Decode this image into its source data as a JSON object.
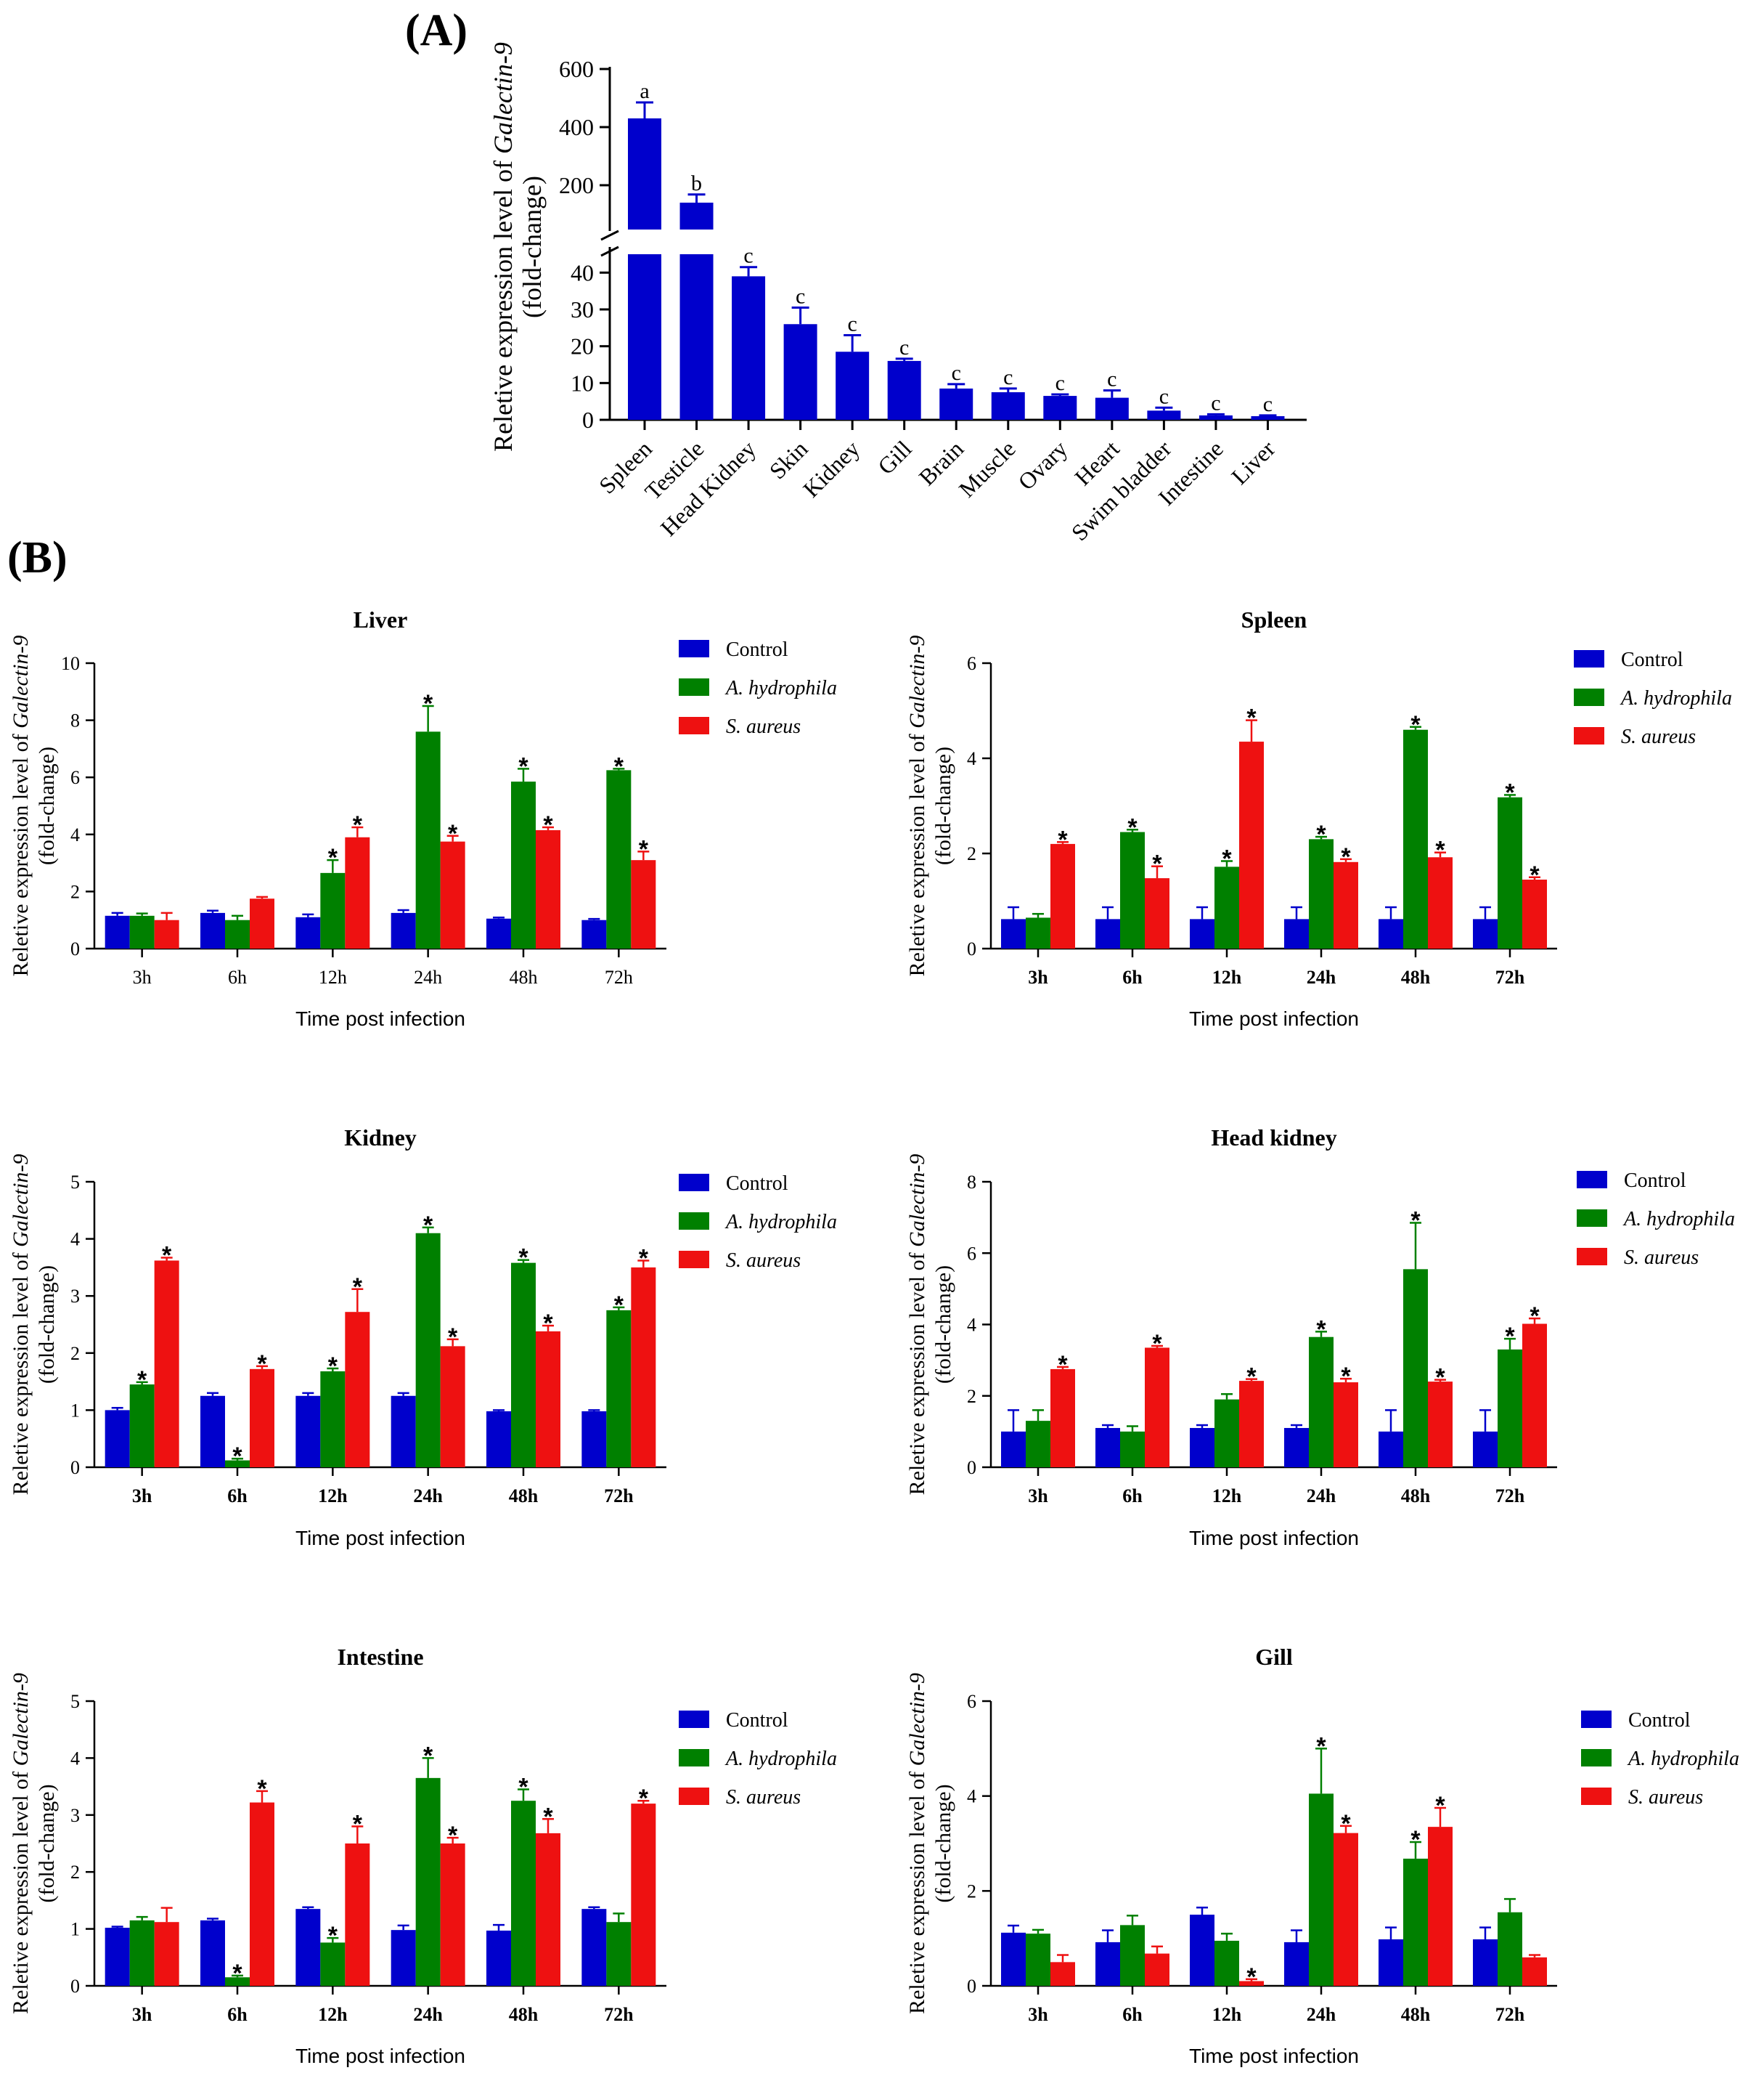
{
  "colors": {
    "control": "#0000cc",
    "hydrophila": "#008000",
    "aureus": "#ee1111",
    "tissue": "#0000cc"
  },
  "panels": {
    "a": "(A)",
    "b": "(B)"
  },
  "common": {
    "ylabel_prefix": "Reletive expression level of ",
    "ylabel_gene": "Galectin-9",
    "ylabel_suffix": "(fold-change)",
    "xlabel": "Time post infection",
    "legend": [
      "Control",
      "A. hydrophila",
      "S. aureus"
    ]
  },
  "chart_data": [
    {
      "id": "A",
      "type": "bar",
      "title": "",
      "ylabel": "Reletive expression level of Galectin-9 (fold-change)",
      "categories": [
        "Spleen",
        "Testicle",
        "Head Kidney",
        "Skin",
        "Kidney",
        "Gill",
        "Brain",
        "Muscle",
        "Ovary",
        "Heart",
        "Swim bladder",
        "Intestine",
        "Liver"
      ],
      "values": [
        430,
        140,
        39,
        26,
        18.5,
        16,
        8.5,
        7.5,
        6.5,
        6,
        2.5,
        1.2,
        1
      ],
      "errors": [
        55,
        28,
        2.5,
        4.5,
        4.5,
        0.6,
        1.2,
        1,
        0.4,
        2,
        0.8,
        0.3,
        0.2
      ],
      "letters": [
        "a",
        "b",
        "c",
        "c",
        "c",
        "c",
        "c",
        "c",
        "c",
        "c",
        "c",
        "c",
        "c"
      ],
      "broken_axis": {
        "lower": [
          0,
          45
        ],
        "upper": [
          0,
          600
        ]
      },
      "ticks_lower": [
        0,
        10,
        20,
        30,
        40
      ],
      "ticks_upper": [
        200,
        400,
        600
      ]
    },
    {
      "id": "liver",
      "type": "bar",
      "title": "Liver",
      "ylim": [
        0,
        10
      ],
      "yticks": [
        0,
        2,
        4,
        6,
        8,
        10
      ],
      "categories": [
        "3h",
        "6h",
        "12h",
        "24h",
        "48h",
        "72h"
      ],
      "bold_categories": false,
      "series": [
        {
          "name": "Control",
          "values": [
            1.15,
            1.25,
            1.1,
            1.25,
            1.05,
            1.0
          ],
          "errors": [
            0.1,
            0.08,
            0.1,
            0.1,
            0.04,
            0.04
          ],
          "sig": [
            false,
            false,
            false,
            false,
            false,
            false
          ]
        },
        {
          "name": "A. hydrophila",
          "values": [
            1.15,
            1.0,
            2.65,
            7.6,
            5.85,
            6.25
          ],
          "errors": [
            0.08,
            0.15,
            0.45,
            0.9,
            0.45,
            0.05
          ],
          "sig": [
            false,
            false,
            true,
            true,
            true,
            true
          ]
        },
        {
          "name": "S. aureus",
          "values": [
            1.0,
            1.75,
            3.9,
            3.75,
            4.15,
            3.1
          ],
          "errors": [
            0.25,
            0.06,
            0.35,
            0.2,
            0.1,
            0.3
          ],
          "sig": [
            false,
            false,
            true,
            true,
            true,
            true
          ]
        }
      ]
    },
    {
      "id": "spleen",
      "type": "bar",
      "title": "Spleen",
      "ylim": [
        0,
        6
      ],
      "yticks": [
        0,
        2,
        4,
        6
      ],
      "categories": [
        "3h",
        "6h",
        "12h",
        "24h",
        "48h",
        "72h"
      ],
      "bold_categories": true,
      "series": [
        {
          "name": "Control",
          "values": [
            0.62,
            0.62,
            0.62,
            0.62,
            0.62,
            0.62
          ],
          "errors": [
            0.25,
            0.25,
            0.25,
            0.25,
            0.25,
            0.25
          ],
          "sig": [
            false,
            false,
            false,
            false,
            false,
            false
          ]
        },
        {
          "name": "A. hydrophila",
          "values": [
            0.65,
            2.45,
            1.72,
            2.3,
            4.6,
            3.18
          ],
          "errors": [
            0.08,
            0.05,
            0.12,
            0.05,
            0.06,
            0.05
          ],
          "sig": [
            false,
            true,
            true,
            true,
            true,
            true
          ]
        },
        {
          "name": "S. aureus",
          "values": [
            2.2,
            1.48,
            4.35,
            1.82,
            1.92,
            1.45
          ],
          "errors": [
            0.04,
            0.25,
            0.45,
            0.06,
            0.1,
            0.05
          ],
          "sig": [
            true,
            true,
            true,
            true,
            true,
            true
          ]
        }
      ]
    },
    {
      "id": "kidney",
      "type": "bar",
      "title": "Kidney",
      "ylim": [
        0,
        5
      ],
      "yticks": [
        0,
        1,
        2,
        3,
        4,
        5
      ],
      "categories": [
        "3h",
        "6h",
        "12h",
        "24h",
        "48h",
        "72h"
      ],
      "bold_categories": true,
      "series": [
        {
          "name": "Control",
          "values": [
            1.0,
            1.25,
            1.25,
            1.25,
            0.98,
            0.98
          ],
          "errors": [
            0.04,
            0.05,
            0.05,
            0.05,
            0.02,
            0.02
          ],
          "sig": [
            false,
            false,
            false,
            false,
            false,
            false
          ]
        },
        {
          "name": "A. hydrophila",
          "values": [
            1.45,
            0.12,
            1.68,
            4.1,
            3.58,
            2.75
          ],
          "errors": [
            0.04,
            0.03,
            0.05,
            0.1,
            0.05,
            0.05
          ],
          "sig": [
            true,
            true,
            true,
            true,
            true,
            true
          ]
        },
        {
          "name": "S. aureus",
          "values": [
            3.62,
            1.72,
            2.72,
            2.12,
            2.38,
            3.5
          ],
          "errors": [
            0.05,
            0.05,
            0.4,
            0.12,
            0.1,
            0.12
          ],
          "sig": [
            true,
            true,
            true,
            true,
            true,
            true
          ]
        }
      ]
    },
    {
      "id": "head_kidney",
      "type": "bar",
      "title": "Head kidney",
      "ylim": [
        0,
        8
      ],
      "yticks": [
        0,
        2,
        4,
        6,
        8
      ],
      "categories": [
        "3h",
        "6h",
        "12h",
        "24h",
        "48h",
        "72h"
      ],
      "bold_categories": true,
      "series": [
        {
          "name": "Control",
          "values": [
            1.0,
            1.1,
            1.1,
            1.1,
            1.0,
            1.0
          ],
          "errors": [
            0.6,
            0.08,
            0.08,
            0.08,
            0.6,
            0.6
          ],
          "sig": [
            false,
            false,
            false,
            false,
            false,
            false
          ]
        },
        {
          "name": "A. hydrophila",
          "values": [
            1.3,
            1.0,
            1.9,
            3.65,
            5.55,
            3.3
          ],
          "errors": [
            0.3,
            0.15,
            0.15,
            0.15,
            1.3,
            0.3
          ],
          "sig": [
            false,
            false,
            false,
            true,
            true,
            true
          ]
        },
        {
          "name": "S. aureus",
          "values": [
            2.75,
            3.35,
            2.42,
            2.38,
            2.4,
            4.02
          ],
          "errors": [
            0.06,
            0.05,
            0.05,
            0.1,
            0.05,
            0.15
          ],
          "sig": [
            true,
            true,
            true,
            true,
            true,
            true
          ]
        }
      ]
    },
    {
      "id": "intestine",
      "type": "bar",
      "title": "Intestine",
      "ylim": [
        0,
        5
      ],
      "yticks": [
        0,
        1,
        2,
        3,
        4,
        5
      ],
      "categories": [
        "3h",
        "6h",
        "12h",
        "24h",
        "48h",
        "72h"
      ],
      "bold_categories": true,
      "series": [
        {
          "name": "Control",
          "values": [
            1.02,
            1.15,
            1.35,
            0.98,
            0.97,
            1.35
          ],
          "errors": [
            0.02,
            0.03,
            0.03,
            0.08,
            0.1,
            0.03
          ],
          "sig": [
            false,
            false,
            false,
            false,
            false,
            false
          ]
        },
        {
          "name": "A. hydrophila",
          "values": [
            1.15,
            0.15,
            0.76,
            3.65,
            3.25,
            1.12
          ],
          "errors": [
            0.06,
            0.03,
            0.08,
            0.35,
            0.2,
            0.15
          ],
          "sig": [
            false,
            true,
            true,
            true,
            true,
            false
          ]
        },
        {
          "name": "S. aureus",
          "values": [
            1.12,
            3.22,
            2.5,
            2.5,
            2.68,
            3.2
          ],
          "errors": [
            0.25,
            0.2,
            0.3,
            0.1,
            0.25,
            0.05
          ],
          "sig": [
            false,
            true,
            true,
            true,
            true,
            true
          ]
        }
      ]
    },
    {
      "id": "gill",
      "type": "bar",
      "title": "Gill",
      "ylim": [
        0,
        6
      ],
      "yticks": [
        0,
        2,
        4,
        6
      ],
      "categories": [
        "3h",
        "6h",
        "12h",
        "24h",
        "48h",
        "72h"
      ],
      "bold_categories": true,
      "series": [
        {
          "name": "Control",
          "values": [
            1.12,
            0.92,
            1.5,
            0.92,
            0.98,
            0.98
          ],
          "errors": [
            0.15,
            0.25,
            0.15,
            0.25,
            0.25,
            0.25
          ],
          "sig": [
            false,
            false,
            false,
            false,
            false,
            false
          ]
        },
        {
          "name": "A. hydrophila",
          "values": [
            1.1,
            1.28,
            0.95,
            4.05,
            2.68,
            1.55
          ],
          "errors": [
            0.08,
            0.2,
            0.15,
            0.95,
            0.35,
            0.28
          ],
          "sig": [
            false,
            false,
            false,
            true,
            true,
            false
          ]
        },
        {
          "name": "S. aureus",
          "values": [
            0.5,
            0.68,
            0.1,
            3.22,
            3.35,
            0.6
          ],
          "errors": [
            0.15,
            0.15,
            0.04,
            0.15,
            0.4,
            0.05
          ],
          "sig": [
            false,
            false,
            true,
            true,
            true,
            false
          ]
        }
      ]
    }
  ]
}
